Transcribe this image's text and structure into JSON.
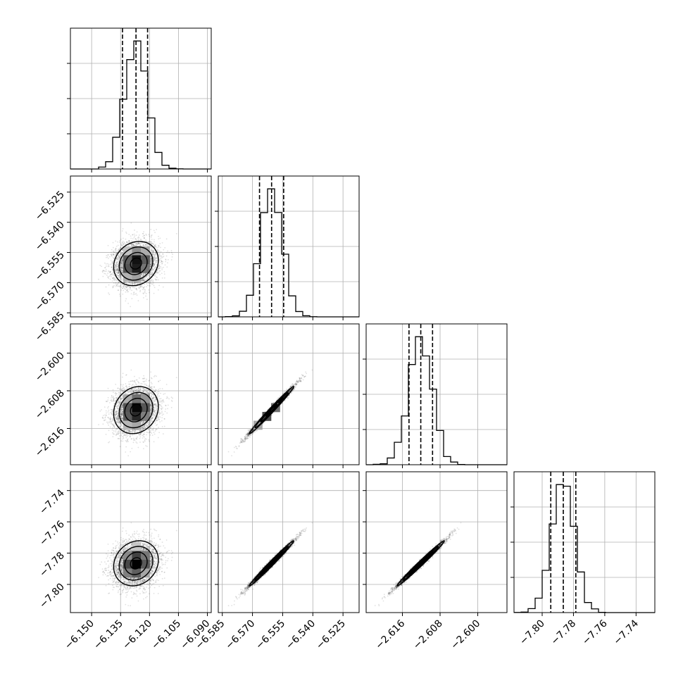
{
  "chart_data": {
    "type": "corner",
    "parameters": [
      {
        "ticks": [
          -6.15,
          -6.135,
          -6.12,
          -6.105,
          -6.09
        ],
        "tick_labels": [
          "−6.150",
          "−6.135",
          "−6.120",
          "−6.105",
          "−6.090"
        ],
        "range": [
          -6.161,
          -6.088
        ],
        "mean": -6.127,
        "std": 0.0058,
        "quantiles": [
          -6.134,
          -6.127,
          -6.121
        ]
      },
      {
        "ticks": [
          -6.585,
          -6.57,
          -6.555,
          -6.54,
          -6.525
        ],
        "tick_labels": [
          "−6.585",
          "−6.570",
          "−6.555",
          "−6.540",
          "−6.525"
        ],
        "range": [
          -6.587,
          -6.517
        ],
        "mean": -6.5605,
        "std": 0.0055,
        "quantiles": [
          -6.5665,
          -6.5605,
          -6.5545
        ]
      },
      {
        "ticks": [
          -2.616,
          -2.608,
          -2.6
        ],
        "tick_labels": [
          "−2.616",
          "−2.608",
          "−2.600"
        ],
        "range": [
          -2.6237,
          -2.5938
        ],
        "mean": -2.6121,
        "std": 0.0025,
        "quantiles": [
          -2.6146,
          -2.6121,
          -2.6096
        ]
      },
      {
        "ticks": [
          -7.8,
          -7.78,
          -7.76,
          -7.74
        ],
        "tick_labels": [
          "−7.80",
          "−7.78",
          "−7.76",
          "−7.74"
        ],
        "range": [
          -7.818,
          -7.728
        ],
        "mean": -7.7865,
        "std": 0.0072,
        "quantiles": [
          -7.7945,
          -7.7865,
          -7.7785
        ]
      }
    ],
    "correlations": {
      "1-0": 0.15,
      "2-0": 0.15,
      "2-1": 0.99,
      "3-0": 0.15,
      "3-1": 0.99,
      "3-2": 0.99
    },
    "samples": 4000,
    "grid": true,
    "quantile_line_style": "dashed",
    "contour_levels": 3
  }
}
